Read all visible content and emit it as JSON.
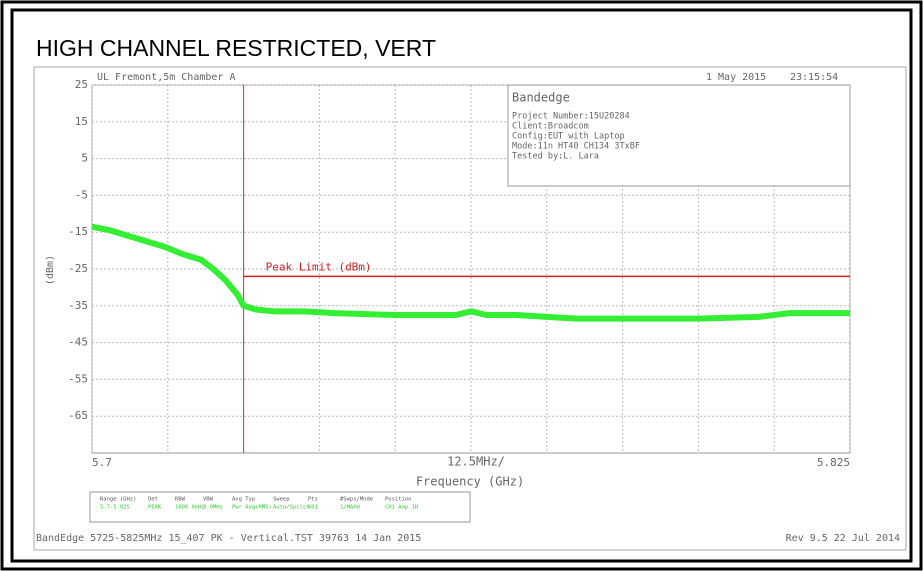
{
  "chart_data": {
    "type": "line",
    "title": "HIGH CHANNEL RESTRICTED, VERT",
    "header_left": "UL Fremont,5m Chamber A",
    "header_date": "1 May 2015",
    "header_time": "23:15:54",
    "info_box": {
      "title": "Bandedge",
      "lines": [
        "Project Number:15U20284",
        "Client:Broadcom",
        "Config:EUT with Laptop",
        "Mode:11n HT40 CH134 3TxBF",
        "Tested by:L. Lara"
      ]
    },
    "x_label": "Frequency (GHz)",
    "y_label": "(dBm)",
    "xlim": [
      5.7,
      5.825
    ],
    "ylim": [
      -75,
      25
    ],
    "xticks": [
      5.7,
      5.7125,
      5.725,
      5.7375,
      5.75,
      5.7625,
      5.775,
      5.7875,
      5.8,
      5.8125,
      5.825
    ],
    "x_labels": [
      {
        "value": 5.7,
        "label": "5.7"
      },
      {
        "value": 5.825,
        "label": "5.825"
      }
    ],
    "x_span_label": "12.5MHz/",
    "yticks": [
      25,
      15,
      5,
      -5,
      -15,
      -25,
      -35,
      -45,
      -55,
      -65
    ],
    "grid": true,
    "vline": {
      "x": 5.725,
      "color": "#e03030"
    },
    "series": [
      {
        "color": "#33ee33",
        "x": [
          5.7,
          5.703,
          5.706,
          5.709,
          5.712,
          5.715,
          5.718,
          5.72,
          5.722,
          5.724,
          5.725,
          5.727,
          5.73,
          5.735,
          5.74,
          5.75,
          5.76,
          5.7625,
          5.765,
          5.77,
          5.775,
          5.78,
          5.79,
          5.8,
          5.81,
          5.815,
          5.82,
          5.825
        ],
        "values": [
          -13.5,
          -14.5,
          -16,
          -17.5,
          -19,
          -21,
          -22.5,
          -25,
          -28,
          -32,
          -35,
          -36,
          -36.5,
          -36.5,
          -37,
          -37.5,
          -37.5,
          -36.5,
          -37.5,
          -37.5,
          -38,
          -38.5,
          -38.5,
          -38.5,
          -38,
          -37,
          -37,
          -37
        ]
      },
      {
        "name": "Peak Limit (dBm)",
        "color": "#d02020",
        "x": [
          5.725,
          5.825
        ],
        "values": [
          -27,
          -27
        ]
      }
    ],
    "settings_table": {
      "headers": [
        "Range (GHz)",
        "Det",
        "RBW",
        "VBW",
        "Avg Typ",
        "Sweep",
        "Pts",
        "#Swps/Mode",
        "Position"
      ],
      "row": [
        "5.7-5.825",
        "PEAK",
        "1000.0kHz",
        "3.0MHz",
        "Pwr Avg(RMS)",
        "Auto/Spclst",
        "601",
        "1/MAXH",
        "CH1 Amp 1H"
      ]
    },
    "footer_left": "BandEdge 5725-5825MHz 15_407 PK - Vertical.TST 39763 14 Jan 2015",
    "footer_right": "Rev 9.5 22 Jul 2014"
  }
}
